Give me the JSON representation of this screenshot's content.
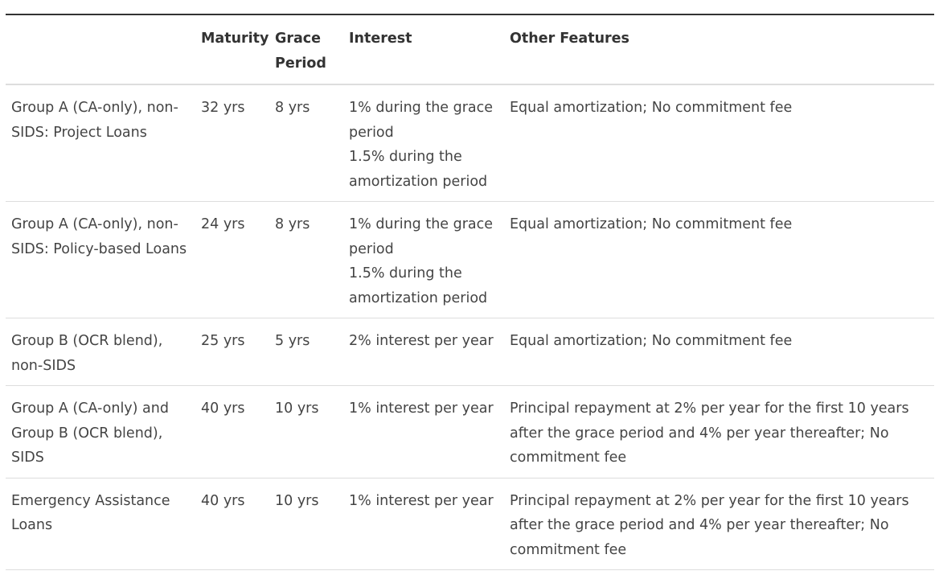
{
  "headers": [
    "",
    "Maturity",
    "Grace\nPeriod",
    "Interest",
    "Other Features"
  ],
  "header_lines": {
    "grace": [
      "Grace",
      "Period"
    ]
  },
  "rows": [
    {
      "group": "Group A (CA-only), non-SIDS: Project Loans",
      "maturity": "32 yrs",
      "grace": "8 yrs",
      "interest": [
        "1% during the grace period",
        "1.5% during the amortization period"
      ],
      "features": "Equal amortization; No commitment fee"
    },
    {
      "group": "Group A (CA-only), non-SIDS: Policy-based Loans",
      "maturity": "24 yrs",
      "grace": "8 yrs",
      "interest": [
        "1% during the grace period",
        "1.5% during the amortization period"
      ],
      "features": "Equal amortization; No commitment fee"
    },
    {
      "group": "Group B (OCR blend), non-SIDS",
      "maturity": "25 yrs",
      "grace": "5 yrs",
      "interest": [
        "2% interest per year"
      ],
      "features": "Equal amortization; No commitment fee"
    },
    {
      "group": "Group A (CA-only) and Group B (OCR blend), SIDS",
      "maturity": "40 yrs",
      "grace": "10 yrs",
      "interest": [
        "1% interest per year"
      ],
      "features": "Principal repayment at 2% per year for the first 10 years after the grace period and 4% per year thereafter; No commitment fee"
    },
    {
      "group": "Emergency Assistance Loans",
      "maturity": "40 yrs",
      "grace": "10 yrs",
      "interest": [
        "1% interest per year"
      ],
      "features": "Principal repayment at 2% per year for the first 10 years after the grace period and 4% per year thereafter; No commitment fee"
    }
  ]
}
